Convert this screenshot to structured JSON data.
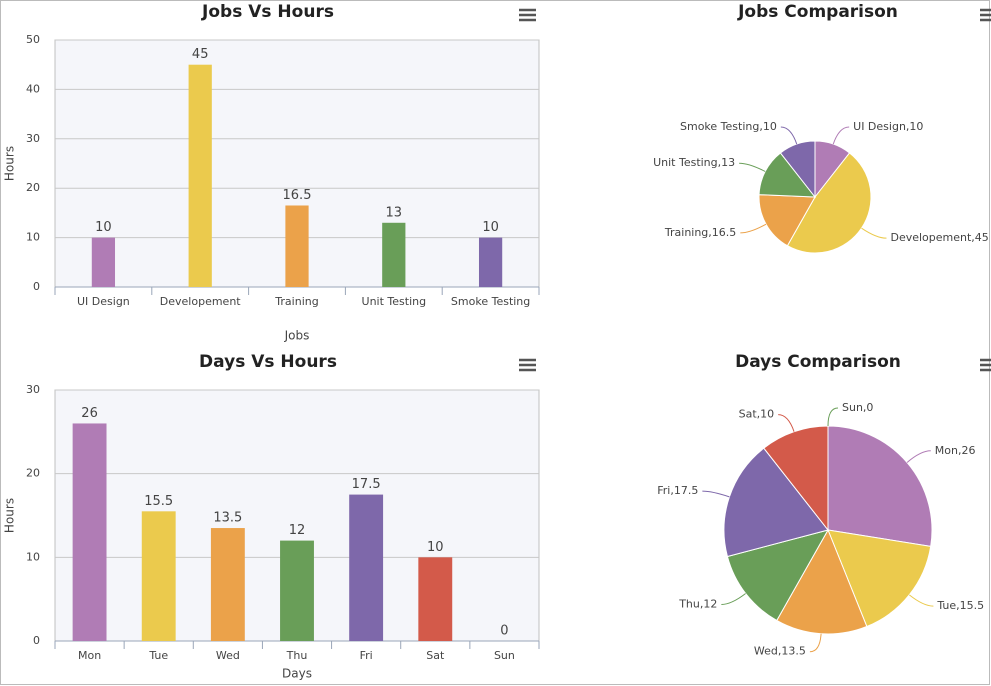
{
  "chart_data": [
    {
      "type": "bar",
      "title": "Jobs Vs Hours",
      "xlabel": "Jobs",
      "ylabel": "Hours",
      "categories": [
        "UI Design",
        "Developement",
        "Training",
        "Unit Testing",
        "Smoke Testing"
      ],
      "values": [
        10,
        45,
        16.5,
        13,
        10
      ],
      "colors": [
        "#b07cb5",
        "#ebca4d",
        "#eba24a",
        "#699e58",
        "#7e68aa"
      ],
      "ylim": [
        0,
        50
      ],
      "yticks": [
        0,
        10,
        20,
        30,
        40,
        50
      ],
      "grid": true
    },
    {
      "type": "pie",
      "title": "Jobs Comparison",
      "categories": [
        "UI Design",
        "Developement",
        "Training",
        "Unit Testing",
        "Smoke Testing"
      ],
      "values": [
        10,
        45,
        16.5,
        13,
        10
      ],
      "value_labels": [
        "UI Design,10",
        "Developement,45",
        "Training,16.5",
        "Unit Testing,13",
        "Smoke Testing,10"
      ],
      "colors": [
        "#b07cb5",
        "#ebca4d",
        "#eba24a",
        "#699e58",
        "#7e68aa"
      ]
    },
    {
      "type": "bar",
      "title": "Days Vs Hours",
      "xlabel": "Days",
      "ylabel": "Hours",
      "categories": [
        "Mon",
        "Tue",
        "Wed",
        "Thu",
        "Fri",
        "Sat",
        "Sun"
      ],
      "values": [
        26,
        15.5,
        13.5,
        12,
        17.5,
        10,
        0
      ],
      "colors": [
        "#b07cb5",
        "#ebca4d",
        "#eba24a",
        "#699e58",
        "#7e68aa",
        "#d35a4a",
        "#699e58"
      ],
      "ylim": [
        0,
        30
      ],
      "yticks": [
        0,
        10,
        20,
        30
      ],
      "grid": true
    },
    {
      "type": "pie",
      "title": "Days Comparison",
      "categories": [
        "Mon",
        "Tue",
        "Wed",
        "Thu",
        "Fri",
        "Sat",
        "Sun"
      ],
      "values": [
        26,
        15.5,
        13.5,
        12,
        17.5,
        10,
        0
      ],
      "value_labels": [
        "Mon,26",
        "Tue,15.5",
        "Wed,13.5",
        "Thu,12",
        "Fri,17.5",
        "Sat,10",
        "Sun,0"
      ],
      "colors": [
        "#b07cb5",
        "#ebca4d",
        "#eba24a",
        "#699e58",
        "#7e68aa",
        "#d35a4a",
        "#699e58"
      ]
    }
  ]
}
